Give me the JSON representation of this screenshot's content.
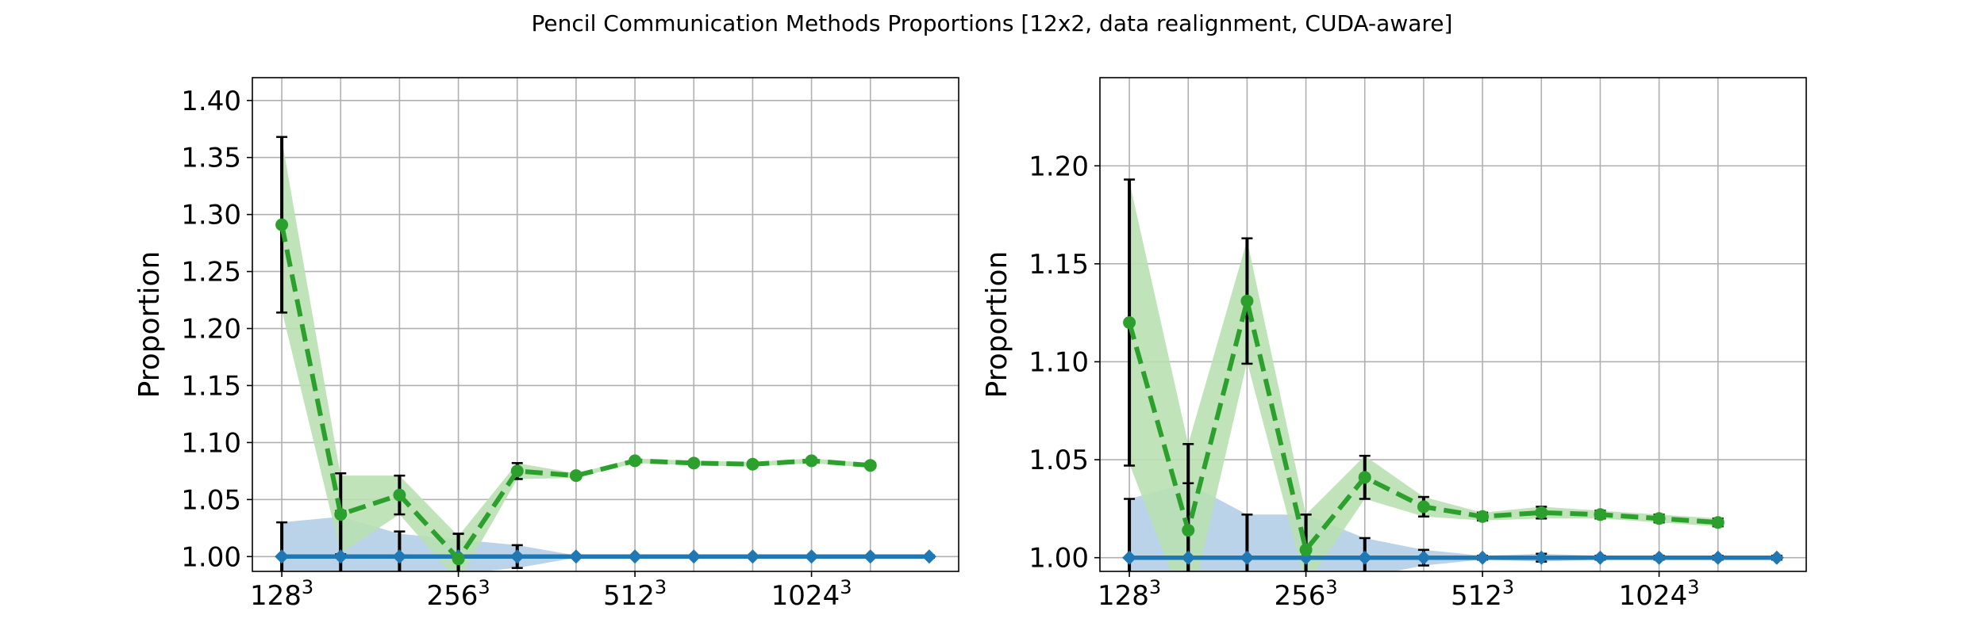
{
  "figure": {
    "title": "Pencil Communication Methods Proportions [12x2, data realignment, CUDA-aware]"
  },
  "colors": {
    "green": "#2ca02c",
    "green_band": "#b9e0b2",
    "blue": "#1f77b4",
    "blue_band": "#b7d1e8",
    "errorbar": "#000000",
    "grid": "#b0b0b0"
  },
  "chart_data": [
    {
      "type": "line",
      "ylabel": "Proportion",
      "xlabel": "",
      "title": "",
      "grid": true,
      "xlim": [
        -0.5,
        11.5
      ],
      "ylim": [
        0.987,
        1.42
      ],
      "xticks": [
        {
          "x": 0,
          "base": "128",
          "exp": "3"
        },
        {
          "x": 3,
          "base": "256",
          "exp": "3"
        },
        {
          "x": 6,
          "base": "512",
          "exp": "3"
        },
        {
          "x": 9,
          "base": "1024",
          "exp": "3"
        }
      ],
      "xgrid": [
        0,
        1,
        2,
        3,
        4,
        5,
        6,
        7,
        8,
        9,
        10
      ],
      "yticks": [
        "1.00",
        "1.05",
        "1.10",
        "1.15",
        "1.20",
        "1.25",
        "1.30",
        "1.35",
        "1.40"
      ],
      "series": [
        {
          "color": "green",
          "style": "dashed",
          "marker": "circle",
          "x": [
            0,
            1,
            2,
            3,
            4,
            5,
            6,
            7,
            8,
            9,
            10
          ],
          "values": [
            1.291,
            1.037,
            1.054,
            0.998,
            1.075,
            1.071,
            1.084,
            1.082,
            1.081,
            1.084,
            1.08
          ],
          "band_low": [
            1.216,
            1.003,
            1.037,
            0.978,
            1.068,
            1.069,
            1.082,
            1.08,
            1.079,
            1.082,
            1.078
          ],
          "band_high": [
            1.366,
            1.071,
            1.071,
            1.018,
            1.082,
            1.073,
            1.086,
            1.084,
            1.083,
            1.086,
            1.082
          ],
          "err_low": [
            1.214,
            1.002,
            1.037,
            0.978,
            1.068,
            1.069,
            1.082,
            1.08,
            1.079,
            1.082,
            1.078
          ],
          "err_high": [
            1.368,
            1.073,
            1.071,
            1.02,
            1.082,
            1.073,
            1.086,
            1.084,
            1.083,
            1.086,
            1.082
          ]
        },
        {
          "color": "blue",
          "style": "solid",
          "marker": "diamond",
          "x": [
            0,
            1,
            2,
            3,
            4,
            5,
            6,
            7,
            8,
            9,
            10,
            11
          ],
          "values": [
            1.0,
            1.0,
            1.0,
            1.0,
            1.0,
            1.0,
            1.0,
            1.0,
            1.0,
            1.0,
            1.0,
            1.0
          ],
          "band_low": [
            0.97,
            0.965,
            0.98,
            0.985,
            0.99,
            0.999,
            0.999,
            0.999,
            0.999,
            0.999,
            0.999,
            0.999
          ],
          "band_high": [
            1.03,
            1.035,
            1.02,
            1.015,
            1.01,
            1.001,
            1.001,
            1.001,
            1.001,
            1.001,
            1.001,
            1.001
          ],
          "err_low": [
            0.97,
            0.96,
            0.978,
            0.98,
            0.99,
            0.999,
            0.999,
            0.999,
            0.999,
            0.999,
            0.999,
            0.999
          ],
          "err_high": [
            1.03,
            1.04,
            1.022,
            1.02,
            1.01,
            1.001,
            1.001,
            1.001,
            1.001,
            1.001,
            1.001,
            1.001
          ]
        }
      ]
    },
    {
      "type": "line",
      "ylabel": "Proportion",
      "xlabel": "",
      "title": "",
      "grid": true,
      "xlim": [
        -0.5,
        11.5
      ],
      "ylim": [
        0.993,
        1.245
      ],
      "xticks": [
        {
          "x": 0,
          "base": "128",
          "exp": "3"
        },
        {
          "x": 3,
          "base": "256",
          "exp": "3"
        },
        {
          "x": 6,
          "base": "512",
          "exp": "3"
        },
        {
          "x": 9,
          "base": "1024",
          "exp": "3"
        }
      ],
      "xgrid": [
        0,
        1,
        2,
        3,
        4,
        5,
        6,
        7,
        8,
        9,
        10
      ],
      "yticks": [
        "1.00",
        "1.05",
        "1.10",
        "1.15",
        "1.20"
      ],
      "series": [
        {
          "color": "green",
          "style": "dashed",
          "marker": "circle",
          "x": [
            0,
            1,
            2,
            3,
            4,
            5,
            6,
            7,
            8,
            9,
            10
          ],
          "values": [
            1.12,
            1.014,
            1.131,
            1.004,
            1.041,
            1.026,
            1.021,
            1.023,
            1.022,
            1.02,
            1.018
          ],
          "band_low": [
            1.048,
            0.97,
            1.1,
            0.986,
            1.03,
            1.021,
            1.019,
            1.02,
            1.02,
            1.018,
            1.016
          ],
          "band_high": [
            1.192,
            1.058,
            1.162,
            1.022,
            1.052,
            1.031,
            1.023,
            1.026,
            1.024,
            1.022,
            1.02
          ],
          "err_low": [
            1.047,
            0.97,
            1.099,
            0.986,
            1.03,
            1.021,
            1.019,
            1.02,
            1.02,
            1.018,
            1.016
          ],
          "err_high": [
            1.193,
            1.058,
            1.163,
            1.022,
            1.052,
            1.031,
            1.023,
            1.026,
            1.024,
            1.022,
            1.02
          ]
        },
        {
          "color": "blue",
          "style": "solid",
          "marker": "diamond",
          "x": [
            0,
            1,
            2,
            3,
            4,
            5,
            6,
            7,
            8,
            9,
            10,
            11
          ],
          "values": [
            1.0,
            1.0,
            1.0,
            1.0,
            1.0,
            1.0,
            1.0,
            1.0,
            1.0,
            1.0,
            1.0,
            1.0
          ],
          "band_low": [
            0.97,
            0.962,
            0.978,
            0.98,
            0.99,
            0.996,
            0.999,
            0.998,
            0.999,
            0.999,
            0.999,
            0.999
          ],
          "band_high": [
            1.03,
            1.038,
            1.022,
            1.022,
            1.01,
            1.004,
            1.001,
            1.002,
            1.001,
            1.001,
            1.001,
            1.001
          ],
          "err_low": [
            0.97,
            0.962,
            0.978,
            0.98,
            0.99,
            0.996,
            0.999,
            0.998,
            0.999,
            0.999,
            0.999,
            0.999
          ],
          "err_high": [
            1.03,
            1.038,
            1.022,
            1.022,
            1.01,
            1.004,
            1.001,
            1.002,
            1.001,
            1.001,
            1.001,
            1.001
          ]
        }
      ]
    }
  ]
}
